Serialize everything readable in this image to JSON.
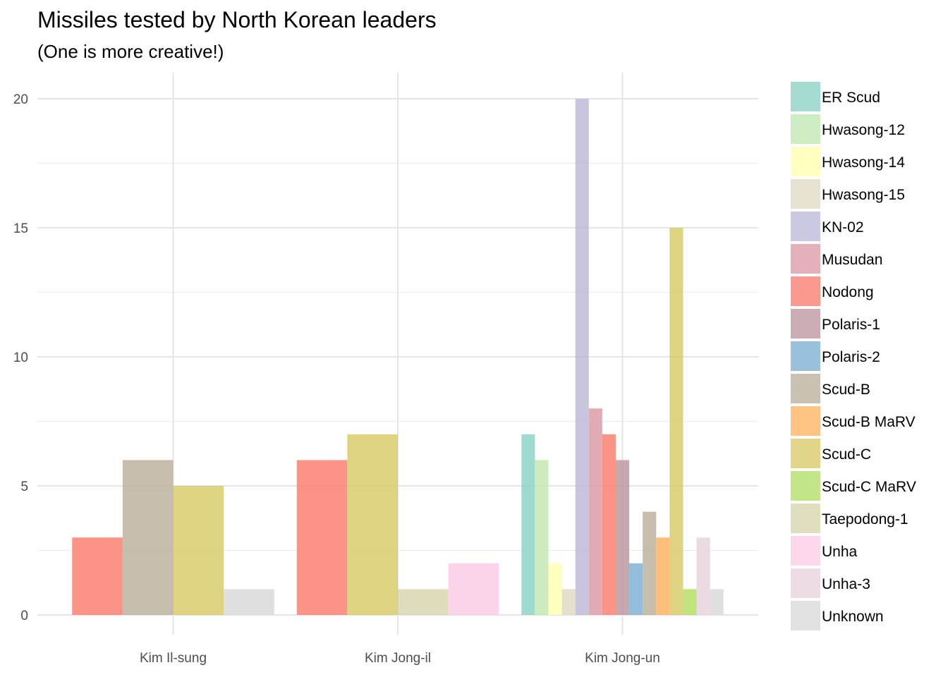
{
  "chart_data": {
    "type": "bar",
    "title": "Missiles tested by North Korean leaders",
    "subtitle": "(One is more creative!)",
    "xlabel": "",
    "ylabel": "",
    "ylim": [
      0,
      21
    ],
    "y_ticks": [
      "0",
      "5",
      "10",
      "15",
      "20"
    ],
    "y_tick_values": [
      0,
      5,
      10,
      15,
      20
    ],
    "grid": true,
    "legend_position": "right",
    "categories": [
      "Kim Il-sung",
      "Kim Jong-il",
      "Kim Jong-un"
    ],
    "series": [
      {
        "name": "ER Scud",
        "color": "#8dd3c7",
        "values": [
          null,
          null,
          7
        ]
      },
      {
        "name": "Hwasong-12",
        "color": "#c3e9b4",
        "values": [
          null,
          null,
          6
        ]
      },
      {
        "name": "Hwasong-14",
        "color": "#ffffb3",
        "values": [
          null,
          null,
          2
        ]
      },
      {
        "name": "Hwasong-15",
        "color": "#dedbc5",
        "values": [
          null,
          null,
          1
        ]
      },
      {
        "name": "KN-02",
        "color": "#bebada",
        "values": [
          null,
          null,
          20
        ]
      },
      {
        "name": "Musudan",
        "color": "#dd9ca7",
        "values": [
          null,
          null,
          8
        ]
      },
      {
        "name": "Nodong",
        "color": "#fb8072",
        "values": [
          3,
          6,
          7
        ]
      },
      {
        "name": "Polaris-1",
        "color": "#bd98a2",
        "values": [
          null,
          null,
          6
        ]
      },
      {
        "name": "Polaris-2",
        "color": "#80b1d3",
        "values": [
          null,
          null,
          2
        ]
      },
      {
        "name": "Scud-B",
        "color": "#bcb29d",
        "values": [
          6,
          null,
          4
        ]
      },
      {
        "name": "Scud-B MaRV",
        "color": "#fdb462",
        "values": [
          null,
          null,
          3
        ]
      },
      {
        "name": "Scud-C",
        "color": "#d8cb6a",
        "values": [
          5,
          7,
          15
        ]
      },
      {
        "name": "Scud-C MaRV",
        "color": "#b3de69",
        "values": [
          null,
          null,
          1
        ]
      },
      {
        "name": "Taepodong-1",
        "color": "#d7d7af",
        "values": [
          null,
          1,
          null
        ]
      },
      {
        "name": "Unha",
        "color": "#fccde5",
        "values": [
          null,
          2,
          null
        ]
      },
      {
        "name": "Unha-3",
        "color": "#e9d3de",
        "values": [
          null,
          null,
          3
        ]
      },
      {
        "name": "Unknown",
        "color": "#d9d9d9",
        "values": [
          1,
          null,
          1
        ]
      }
    ]
  }
}
